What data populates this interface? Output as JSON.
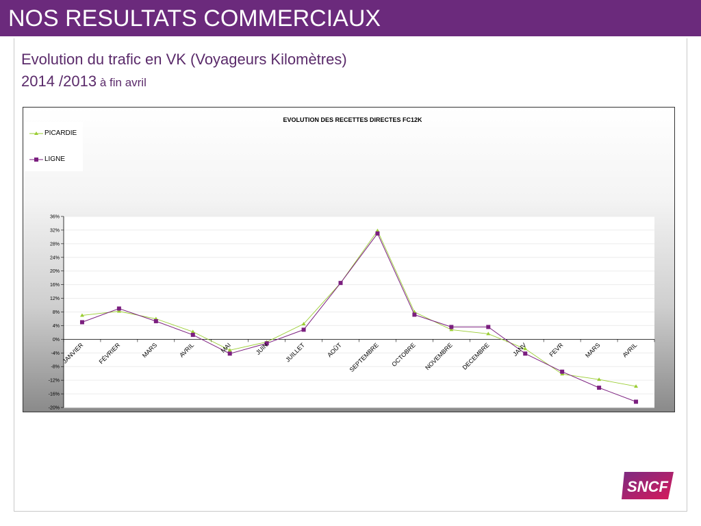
{
  "header": {
    "title": "NOS RESULTATS COMMERCIAUX"
  },
  "subtitle": {
    "line1": "Evolution du trafic en VK (Voyageurs Kilomètres)",
    "line2_year": "2014 /2013",
    "line2_note": " à fin avril"
  },
  "logo": {
    "text": "SNCF",
    "colors": [
      "#7b2b82",
      "#d7195a"
    ]
  },
  "chart_data": {
    "type": "line",
    "title": "EVOLUTION DES RECETTES DIRECTES FC12K",
    "categories": [
      "JANVIER",
      "FÉVRIER",
      "MARS",
      "AVRIL",
      "MAI",
      "JUIN",
      "JUILLET",
      "AOÛT",
      "SEPTEMBRE",
      "OCTOBRE",
      "NOVEMBRE",
      "DECEMBRE",
      "JANV",
      "FEVR",
      "MARS",
      "AVRIL"
    ],
    "series": [
      {
        "name": "PICARDIE",
        "color": "#9acd32",
        "marker": "triangle",
        "values": [
          7.0,
          8.2,
          6.0,
          2.2,
          -3.2,
          -0.8,
          4.5,
          16.5,
          31.8,
          8.0,
          2.8,
          1.6,
          -2.8,
          -10.2,
          -11.8,
          -13.8
        ]
      },
      {
        "name": "LIGNE",
        "color": "#7b1f7f",
        "marker": "square",
        "values": [
          5.0,
          9.0,
          5.3,
          1.3,
          -4.2,
          -1.2,
          2.8,
          16.5,
          31.0,
          7.2,
          3.6,
          3.6,
          -4.2,
          -9.5,
          -14.2,
          -18.3
        ]
      }
    ],
    "y_ticks": [
      "36%",
      "32%",
      "28%",
      "24%",
      "20%",
      "16%",
      "12%",
      "8%",
      "4%",
      "0%",
      "-4%",
      "-8%",
      "-12%",
      "-16%",
      "-20%"
    ],
    "ylim": [
      -20,
      36
    ],
    "legend_position": "top-left",
    "grid": true
  }
}
